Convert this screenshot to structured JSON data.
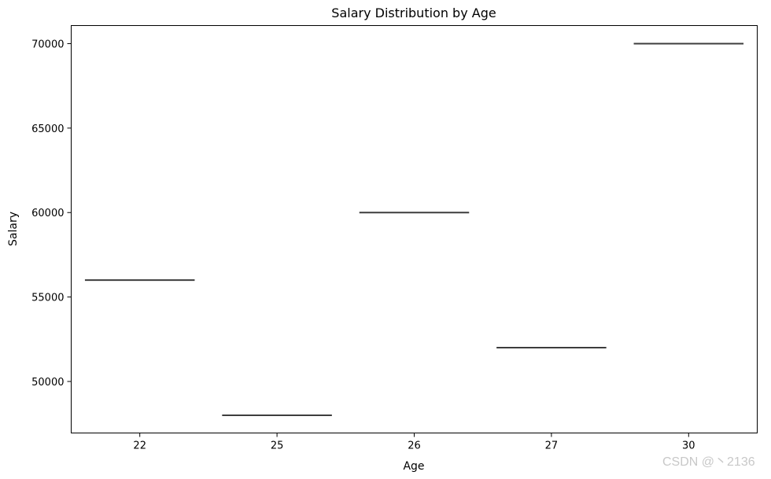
{
  "chart_data": {
    "type": "box",
    "title": "Salary Distribution by Age",
    "xlabel": "Age",
    "ylabel": "Salary",
    "categories": [
      "22",
      "25",
      "26",
      "27",
      "30"
    ],
    "values": [
      56000,
      48000,
      60000,
      52000,
      70000
    ],
    "yticks": [
      50000,
      55000,
      60000,
      65000,
      70000
    ],
    "ylim": [
      46950,
      71070
    ],
    "grid": false,
    "line_color": "#3d3d3d"
  },
  "watermark": "CSDN @丶2136"
}
